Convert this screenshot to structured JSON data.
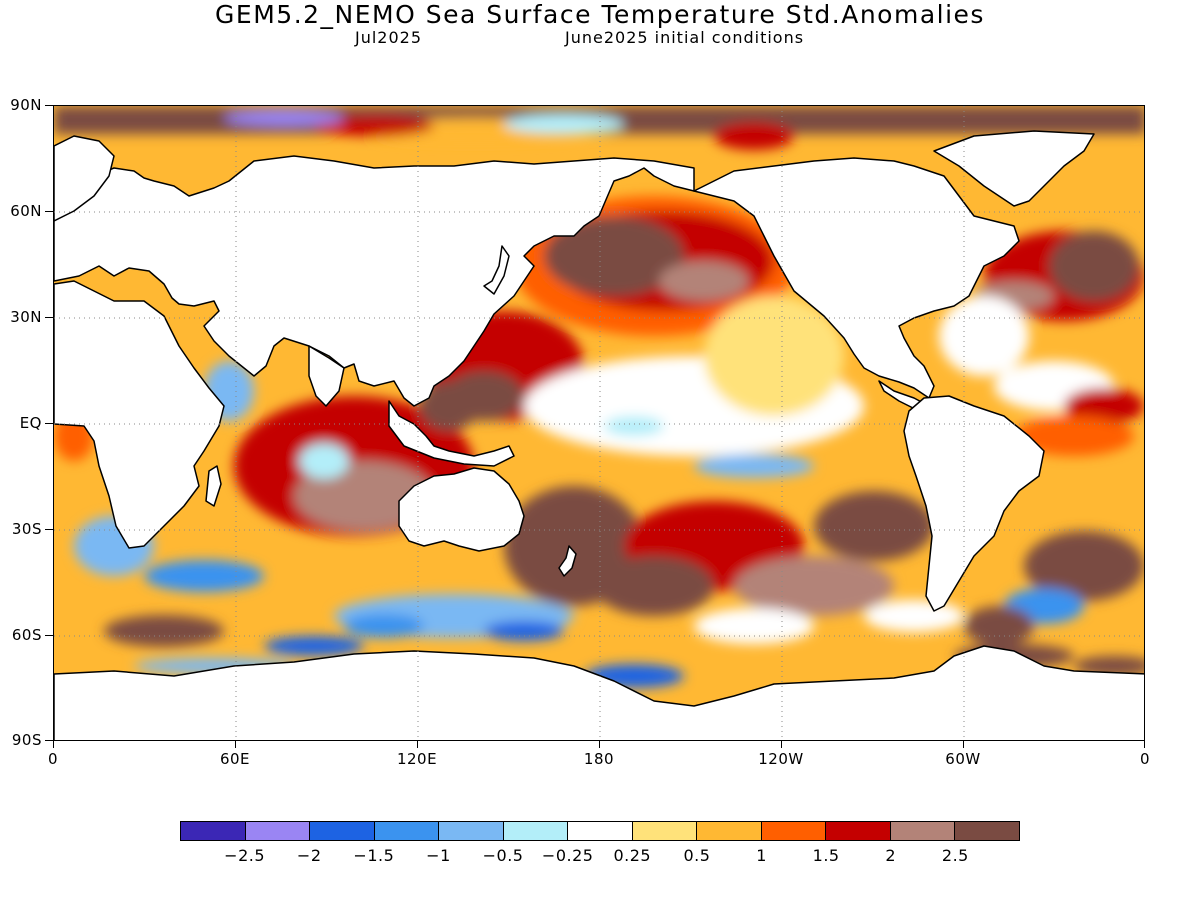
{
  "title": "GEM5.2_NEMO Sea Surface Temperature Std.Anomalies",
  "subtitle_left": "Jul2025",
  "subtitle_right": "June2025 initial conditions",
  "map": {
    "projection": "equirectangular",
    "lon_range": [
      0,
      360
    ],
    "lat_range": [
      -90,
      90
    ],
    "y_axis_labels": [
      "90N",
      "60N",
      "30N",
      "EQ",
      "30S",
      "60S",
      "90S"
    ],
    "x_axis_labels": [
      "0",
      "60E",
      "120E",
      "180",
      "120W",
      "60W",
      "0"
    ],
    "grid": "dotted"
  },
  "colorbar": {
    "colors": [
      "#3b27b5",
      "#9a85f3",
      "#1d63e3",
      "#3b93ef",
      "#7ab8f3",
      "#b3eef9",
      "#ffffff",
      "#ffe27a",
      "#ffb833",
      "#ff5f00",
      "#c40000",
      "#b38378",
      "#7a4b42"
    ],
    "labels": [
      "-2.5",
      "-2",
      "-1.5",
      "-1",
      "-0.5",
      "-0.25",
      "0.25",
      "0.5",
      "1",
      "1.5",
      "2",
      "2.5"
    ]
  }
}
